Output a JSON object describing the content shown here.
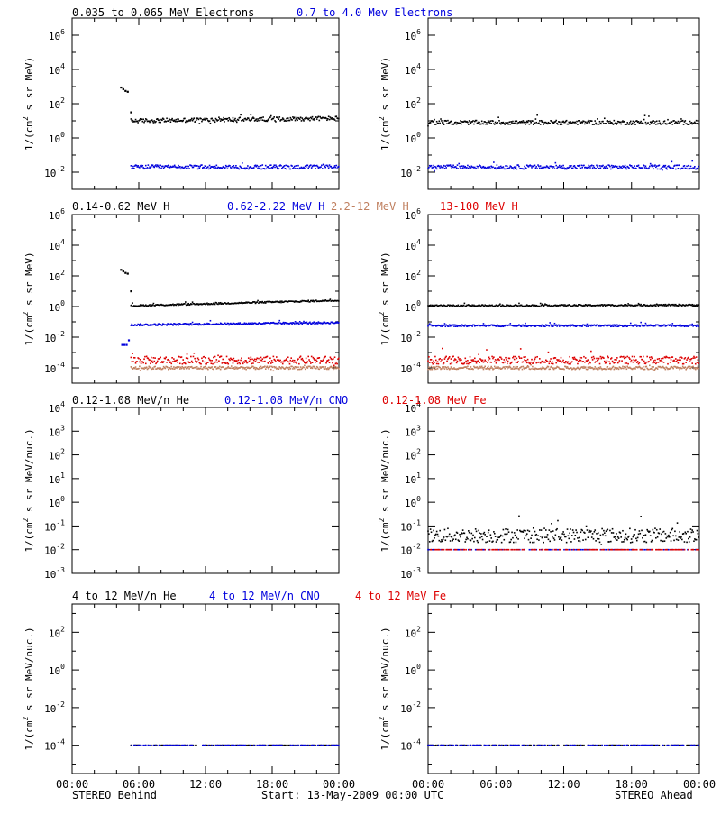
{
  "footer": {
    "left_label": "STEREO Behind",
    "center_label": "Start: 13-May-2009 00:00 UTC",
    "right_label": "STEREO Ahead"
  },
  "colors": {
    "black": "#000000",
    "blue": "#0000dd",
    "brown": "#c08060",
    "red": "#dd0000"
  },
  "chart_data": [
    {
      "type": "scatter",
      "panel": "electrons-behind",
      "ylabel": "1/(cm^2 s sr MeV)",
      "y_log": true,
      "ylim_exp": [
        -3,
        7
      ],
      "yticks": [
        {
          "exp": 6,
          "label": "10^6"
        },
        {
          "exp": 4,
          "label": "10^4"
        },
        {
          "exp": 2,
          "label": "10^2"
        },
        {
          "exp": 0,
          "label": "10^0"
        },
        {
          "exp": -2,
          "label": "10^-2"
        }
      ],
      "xlim_hours": [
        0,
        24
      ],
      "series": [
        {
          "name": "0.035 to 0.065 MeV Electrons",
          "color": "#000000",
          "points_hours_log10": [
            [
              4.4,
              2.95
            ],
            [
              4.6,
              2.85
            ],
            [
              4.8,
              2.75
            ],
            [
              5.0,
              2.7
            ],
            [
              5.3,
              1.5
            ]
          ],
          "steady": {
            "start": 5.3,
            "end": 24,
            "level_log10": 1.0,
            "trend": 0.15,
            "noise": 0.12
          }
        },
        {
          "name": "0.7 to 4.0 Mev Electrons",
          "color": "#0000dd",
          "steady": {
            "start": 5.3,
            "end": 24,
            "level_log10": -1.7,
            "trend": 0.0,
            "noise": 0.12
          }
        }
      ]
    },
    {
      "type": "scatter",
      "panel": "electrons-ahead",
      "ylabel": "1/(cm^2 s sr MeV)",
      "y_log": true,
      "ylim_exp": [
        -3,
        7
      ],
      "yticks": [
        {
          "exp": 6,
          "label": "10^6"
        },
        {
          "exp": 4,
          "label": "10^4"
        },
        {
          "exp": 2,
          "label": "10^2"
        },
        {
          "exp": 0,
          "label": "10^0"
        },
        {
          "exp": -2,
          "label": "10^-2"
        }
      ],
      "xlim_hours": [
        0,
        24
      ],
      "series": [
        {
          "name": "0.035 to 0.065 MeV Electrons",
          "color": "#000000",
          "steady": {
            "start": 0,
            "end": 24,
            "level_log10": 0.9,
            "trend": 0.0,
            "noise": 0.12
          }
        },
        {
          "name": "0.7 to 4.0 Mev Electrons",
          "color": "#0000dd",
          "steady": {
            "start": 0,
            "end": 24,
            "level_log10": -1.7,
            "trend": 0.0,
            "noise": 0.12
          }
        }
      ]
    },
    {
      "type": "scatter",
      "panel": "protons-behind",
      "ylabel": "1/(cm^2 s sr MeV)",
      "y_log": true,
      "ylim_exp": [
        -5,
        6
      ],
      "yticks": [
        {
          "exp": 6,
          "label": "10^6"
        },
        {
          "exp": 4,
          "label": "10^4"
        },
        {
          "exp": 2,
          "label": "10^2"
        },
        {
          "exp": 0,
          "label": "10^0"
        },
        {
          "exp": -2,
          "label": "10^-2"
        },
        {
          "exp": -4,
          "label": "10^-4"
        }
      ],
      "xlim_hours": [
        0,
        24
      ],
      "series": [
        {
          "name": "0.14-0.62 MeV H",
          "color": "#000000",
          "points_hours_log10": [
            [
              4.4,
              2.4
            ],
            [
              4.6,
              2.3
            ],
            [
              4.8,
              2.2
            ],
            [
              5.0,
              2.15
            ],
            [
              5.3,
              1.0
            ]
          ],
          "steady": {
            "start": 5.3,
            "end": 24,
            "level_log10": 0.05,
            "trend": 0.35,
            "noise": 0.05
          }
        },
        {
          "name": "0.62-2.22 MeV H",
          "color": "#0000dd",
          "points_hours_log10": [
            [
              4.5,
              -2.5
            ],
            [
              4.7,
              -2.5
            ],
            [
              4.9,
              -2.5
            ],
            [
              5.1,
              -2.2
            ]
          ],
          "steady": {
            "start": 5.3,
            "end": 24,
            "level_log10": -1.2,
            "trend": 0.15,
            "noise": 0.06
          }
        },
        {
          "name": "2.2-12 MeV H",
          "color": "#c08060",
          "steady": {
            "start": 5.3,
            "end": 24,
            "level_log10": -4.0,
            "trend": 0.0,
            "noise": 0.1
          }
        },
        {
          "name": "13-100 MeV H",
          "color": "#dd0000",
          "steady": {
            "start": 5.3,
            "end": 24,
            "level_log10": -3.5,
            "trend": 0.0,
            "noise": 0.25
          }
        }
      ]
    },
    {
      "type": "scatter",
      "panel": "protons-ahead",
      "ylabel": "1/(cm^2 s sr MeV)",
      "y_log": true,
      "ylim_exp": [
        -5,
        6
      ],
      "yticks": [
        {
          "exp": 6,
          "label": "10^6"
        },
        {
          "exp": 4,
          "label": "10^4"
        },
        {
          "exp": 2,
          "label": "10^2"
        },
        {
          "exp": 0,
          "label": "10^0"
        },
        {
          "exp": -2,
          "label": "10^-2"
        },
        {
          "exp": -4,
          "label": "10^-4"
        }
      ],
      "xlim_hours": [
        0,
        24
      ],
      "series": [
        {
          "name": "0.14-0.62 MeV H",
          "color": "#000000",
          "steady": {
            "start": 0,
            "end": 24,
            "level_log10": 0.05,
            "trend": 0.05,
            "noise": 0.05
          }
        },
        {
          "name": "0.62-2.22 MeV H",
          "color": "#0000dd",
          "steady": {
            "start": 0,
            "end": 24,
            "level_log10": -1.25,
            "trend": 0.0,
            "noise": 0.06
          }
        },
        {
          "name": "2.2-12 MeV H",
          "color": "#c08060",
          "steady": {
            "start": 0,
            "end": 24,
            "level_log10": -4.0,
            "trend": 0.0,
            "noise": 0.1
          }
        },
        {
          "name": "13-100 MeV H",
          "color": "#dd0000",
          "steady": {
            "start": 0,
            "end": 24,
            "level_log10": -3.5,
            "trend": 0.0,
            "noise": 0.25
          }
        }
      ]
    },
    {
      "type": "scatter",
      "panel": "heavy-low-behind",
      "ylabel": "1/(cm^2 s sr MeV/nuc.)",
      "y_log": true,
      "ylim_exp": [
        -3,
        4
      ],
      "yticks": [
        {
          "exp": 4,
          "label": "10^4"
        },
        {
          "exp": 3,
          "label": "10^3"
        },
        {
          "exp": 2,
          "label": "10^2"
        },
        {
          "exp": 1,
          "label": "10^1"
        },
        {
          "exp": 0,
          "label": "10^0"
        },
        {
          "exp": -1,
          "label": "10^-1"
        },
        {
          "exp": -2,
          "label": "10^-2"
        },
        {
          "exp": -3,
          "label": "10^-3"
        }
      ],
      "xlim_hours": [
        0,
        24
      ],
      "series": [
        {
          "name": "0.12-1.08 MeV/n He",
          "color": "#000000"
        },
        {
          "name": "0.12-1.08 MeV/n CNO",
          "color": "#0000dd"
        },
        {
          "name": "0.12-1.08 MeV Fe",
          "color": "#dd0000"
        }
      ]
    },
    {
      "type": "scatter",
      "panel": "heavy-low-ahead",
      "ylabel": "1/(cm^2 s sr MeV/nuc.)",
      "y_log": true,
      "ylim_exp": [
        -3,
        4
      ],
      "yticks": [
        {
          "exp": 4,
          "label": "10^4"
        },
        {
          "exp": 3,
          "label": "10^3"
        },
        {
          "exp": 2,
          "label": "10^2"
        },
        {
          "exp": 1,
          "label": "10^1"
        },
        {
          "exp": 0,
          "label": "10^0"
        },
        {
          "exp": -1,
          "label": "10^-1"
        },
        {
          "exp": -2,
          "label": "10^-2"
        },
        {
          "exp": -3,
          "label": "10^-3"
        }
      ],
      "xlim_hours": [
        0,
        24
      ],
      "series": [
        {
          "name": "0.12-1.08 MeV/n He",
          "color": "#000000",
          "steady": {
            "start": 0,
            "end": 24,
            "level_log10": -1.4,
            "trend": 0.0,
            "noise": 0.3
          }
        },
        {
          "name": "0.12-1.08 MeV/n CNO",
          "color": "#0000dd",
          "steady": {
            "start": 0,
            "end": 24,
            "level_log10": -2.0,
            "trend": 0.0,
            "noise": 0.0
          }
        },
        {
          "name": "0.12-1.08 MeV Fe",
          "color": "#dd0000",
          "steady": {
            "start": 0,
            "end": 24,
            "level_log10": -2.0,
            "trend": 0.0,
            "noise": 0.0
          }
        }
      ]
    },
    {
      "type": "scatter",
      "panel": "heavy-high-behind",
      "ylabel": "1/(cm^2 s sr MeV/nuc.)",
      "y_log": true,
      "ylim_exp": [
        -5.5,
        3.5
      ],
      "yticks": [
        {
          "exp": 2,
          "label": "10^2"
        },
        {
          "exp": 0,
          "label": "10^0"
        },
        {
          "exp": -2,
          "label": "10^-2"
        },
        {
          "exp": -4,
          "label": "10^-4"
        }
      ],
      "xlim_hours": [
        0,
        24
      ],
      "series": [
        {
          "name": "4 to 12 MeV/n He",
          "color": "#000000",
          "steady": {
            "start": 5.3,
            "end": 24,
            "level_log10": -4.0,
            "trend": 0.0,
            "noise": 0.0
          }
        },
        {
          "name": "4 to 12 MeV/n CNO",
          "color": "#0000dd",
          "steady": {
            "start": 5.3,
            "end": 24,
            "level_log10": -4.0,
            "trend": 0.0,
            "noise": 0.0
          }
        },
        {
          "name": "4 to 12 MeV Fe",
          "color": "#dd0000"
        }
      ]
    },
    {
      "type": "scatter",
      "panel": "heavy-high-ahead",
      "ylabel": "1/(cm^2 s sr MeV/nuc.)",
      "y_log": true,
      "ylim_exp": [
        -5.5,
        3.5
      ],
      "yticks": [
        {
          "exp": 2,
          "label": "10^2"
        },
        {
          "exp": 0,
          "label": "10^0"
        },
        {
          "exp": -2,
          "label": "10^-2"
        },
        {
          "exp": -4,
          "label": "10^-4"
        }
      ],
      "xlim_hours": [
        0,
        24
      ],
      "series": [
        {
          "name": "4 to 12 MeV/n He",
          "color": "#000000",
          "steady": {
            "start": 0,
            "end": 24,
            "level_log10": -4.0,
            "trend": 0.0,
            "noise": 0.0
          }
        },
        {
          "name": "4 to 12 MeV/n CNO",
          "color": "#0000dd",
          "steady": {
            "start": 0,
            "end": 24,
            "level_log10": -4.0,
            "trend": 0.0,
            "noise": 0.0
          }
        },
        {
          "name": "4 to 12 MeV Fe",
          "color": "#dd0000"
        }
      ]
    }
  ],
  "xticks": [
    "00:00",
    "06:00",
    "12:00",
    "18:00",
    "00:00"
  ]
}
